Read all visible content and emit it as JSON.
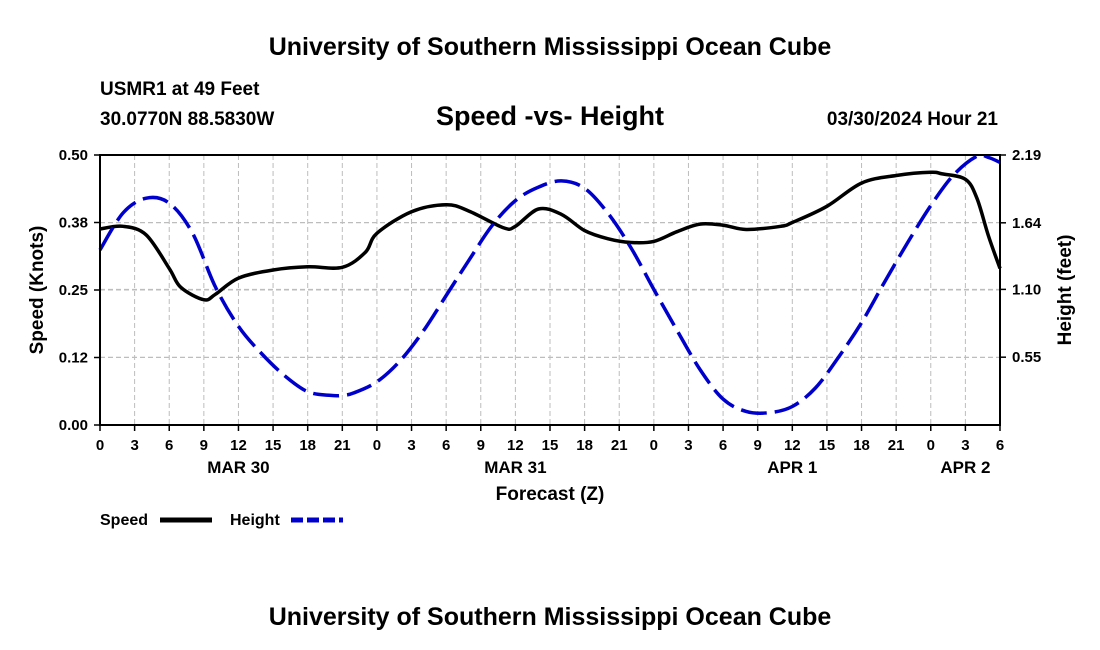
{
  "page": {
    "title": "University of Southern Mississippi Ocean Cube",
    "footer_title": "University of Southern Mississippi Ocean Cube"
  },
  "chart_data": {
    "type": "line",
    "title": "Speed -vs- Height",
    "station": "USMR1 at 49 Feet",
    "coordinates": "30.0770N  88.5830W",
    "timestamp": "03/30/2024 Hour 21",
    "xlabel": "Forecast (Z)",
    "ylabel_left": "Speed (Knots)",
    "ylabel_right": "Height (feet)",
    "x_tick_labels": [
      "0",
      "3",
      "6",
      "9",
      "12",
      "15",
      "18",
      "21",
      "0",
      "3",
      "6",
      "9",
      "12",
      "15",
      "18",
      "21",
      "0",
      "3",
      "6",
      "9",
      "12",
      "15",
      "18",
      "21",
      "0",
      "3",
      "6"
    ],
    "date_labels": [
      {
        "label": "MAR 30",
        "hour": 12
      },
      {
        "label": "MAR 31",
        "hour": 36
      },
      {
        "label": "APR 1",
        "hour": 60
      },
      {
        "label": "APR 2",
        "hour": 75
      }
    ],
    "x_range_hours": [
      0,
      78
    ],
    "y_left_range": [
      0,
      0.5
    ],
    "y_left_ticks": [
      "0.00",
      "0.12",
      "0.25",
      "0.38",
      "0.50"
    ],
    "y_right_range": [
      0,
      2.19
    ],
    "y_right_ticks": [
      "0.55",
      "1.10",
      "1.64",
      "2.19"
    ],
    "grid": true,
    "legend_position": "bottom-left",
    "series": [
      {
        "name": "Speed",
        "axis": "left",
        "color": "#000000",
        "style": "solid",
        "hours": [
          0,
          2,
          4,
          6,
          7,
          9,
          10,
          12,
          15,
          18,
          21,
          23,
          24,
          27,
          30,
          32,
          35,
          36,
          38,
          40,
          42,
          44,
          46,
          48,
          50,
          52,
          54,
          56,
          59,
          60,
          63,
          66,
          69,
          72,
          73,
          75,
          76,
          77,
          78
        ],
        "values": [
          0.363,
          0.368,
          0.352,
          0.29,
          0.255,
          0.232,
          0.242,
          0.272,
          0.287,
          0.293,
          0.292,
          0.32,
          0.355,
          0.395,
          0.408,
          0.396,
          0.365,
          0.368,
          0.4,
          0.39,
          0.36,
          0.345,
          0.338,
          0.34,
          0.358,
          0.372,
          0.37,
          0.362,
          0.368,
          0.375,
          0.405,
          0.448,
          0.462,
          0.468,
          0.465,
          0.455,
          0.42,
          0.35,
          0.29
        ]
      },
      {
        "name": "Height",
        "axis": "right",
        "color": "#0000cc",
        "style": "dashed",
        "hours": [
          0,
          2,
          4,
          6,
          8,
          10,
          12,
          14,
          16,
          18,
          20,
          21,
          22,
          24,
          26,
          28,
          30,
          32,
          34,
          36,
          38,
          40,
          42,
          44,
          46,
          48,
          50,
          52,
          54,
          56,
          58,
          60,
          62,
          64,
          66,
          68,
          70,
          72,
          74,
          76,
          77,
          78
        ],
        "values": [
          1.42,
          1.72,
          1.84,
          1.8,
          1.56,
          1.12,
          0.8,
          0.58,
          0.4,
          0.27,
          0.24,
          0.24,
          0.26,
          0.35,
          0.52,
          0.76,
          1.05,
          1.34,
          1.62,
          1.82,
          1.93,
          1.98,
          1.92,
          1.72,
          1.44,
          1.1,
          0.77,
          0.45,
          0.21,
          0.11,
          0.1,
          0.15,
          0.3,
          0.55,
          0.83,
          1.16,
          1.48,
          1.78,
          2.03,
          2.18,
          2.17,
          2.13
        ]
      }
    ]
  }
}
